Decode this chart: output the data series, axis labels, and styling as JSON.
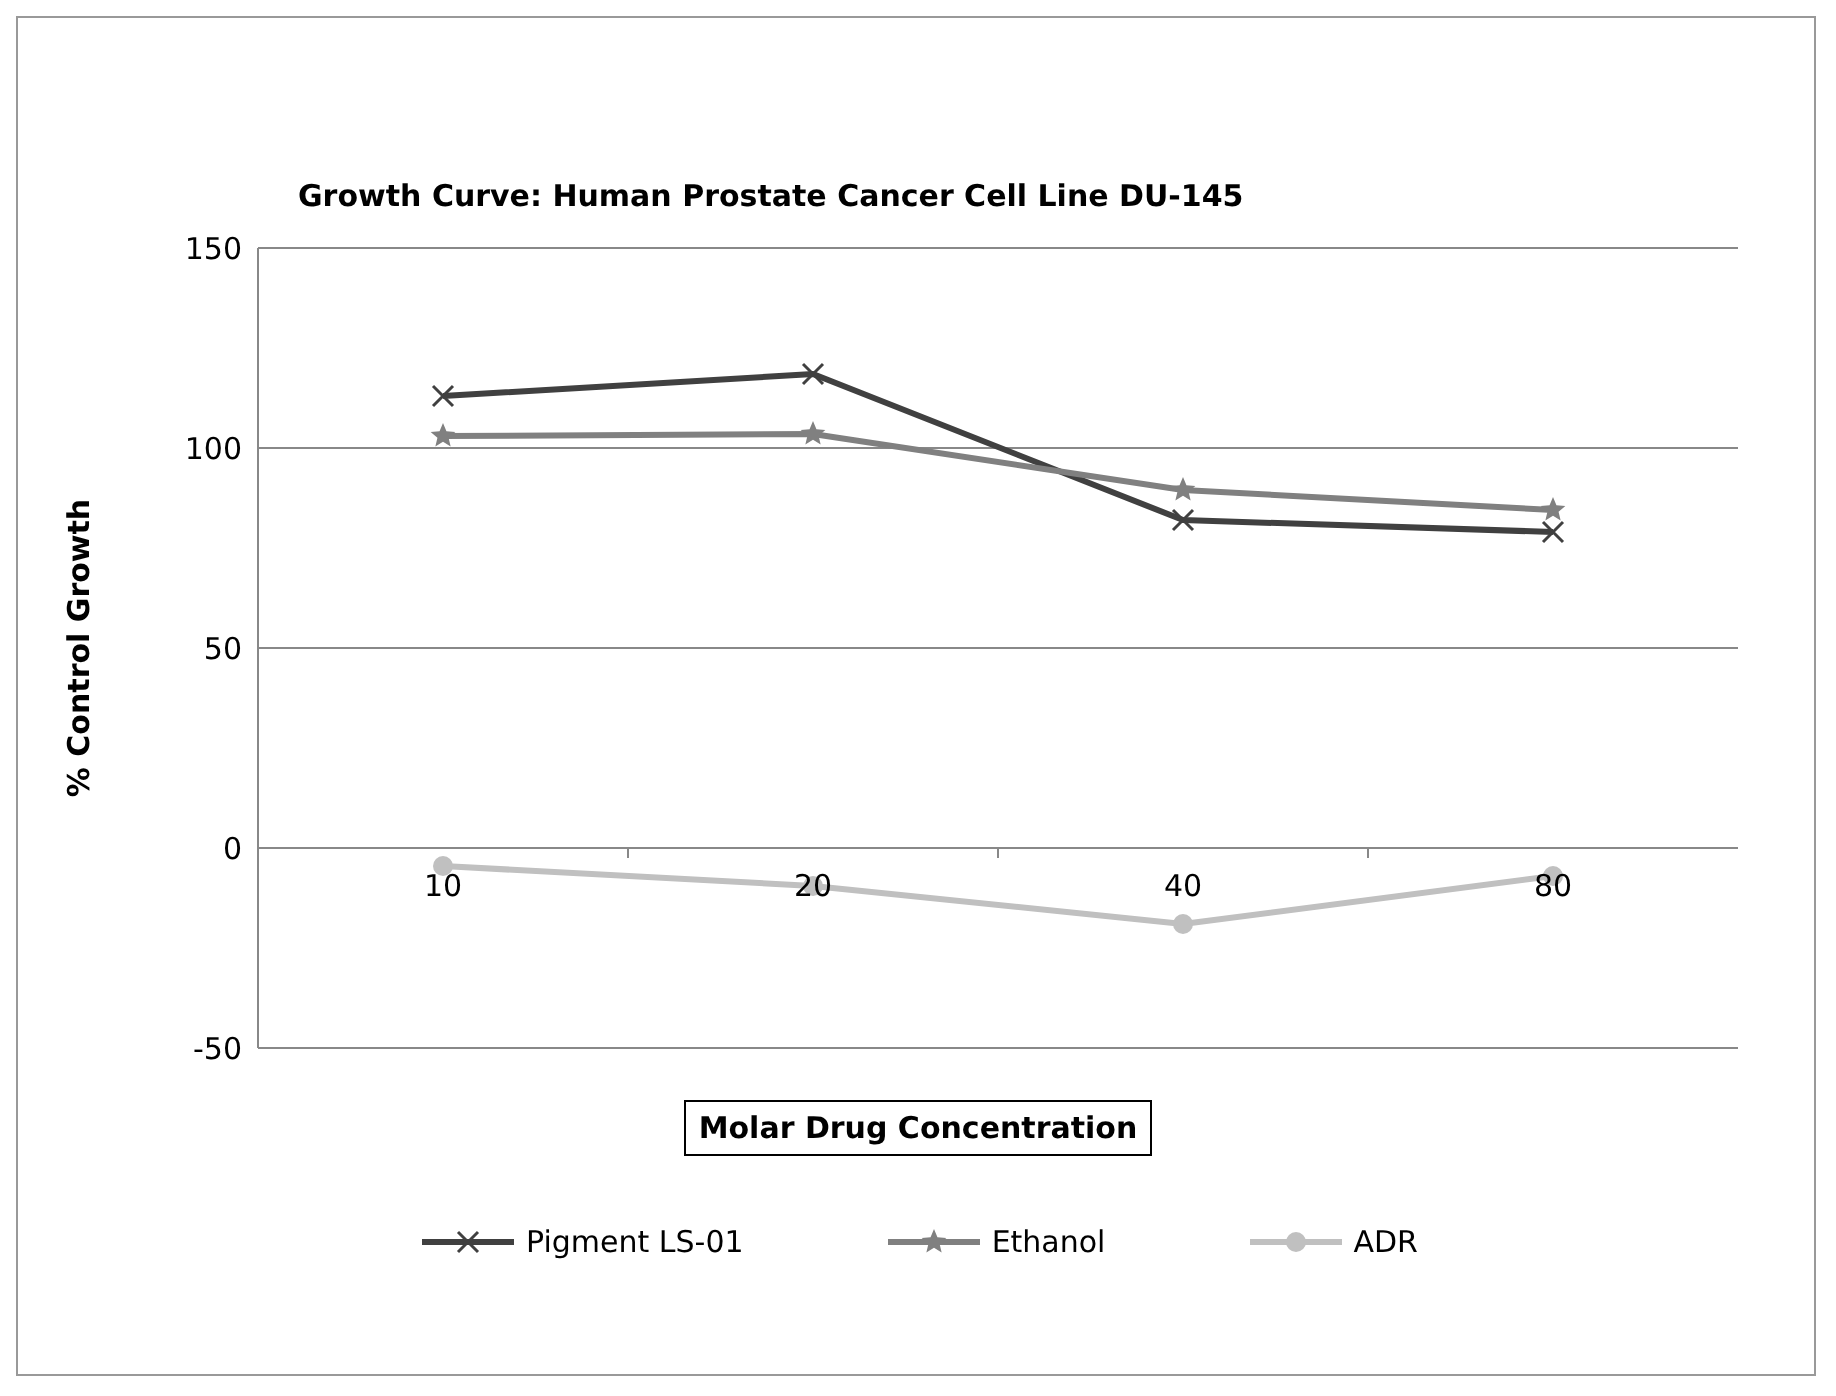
{
  "chart_data": {
    "type": "line",
    "title": "Growth Curve: Human  Prostate Cancer Cell Line DU-145",
    "xlabel": "Molar Drug Concentration",
    "ylabel": "% Control Growth",
    "categories": [
      "10",
      "20",
      "40",
      "80"
    ],
    "series": [
      {
        "name": "Pigment LS-01",
        "color": "#404040",
        "marker": "cross",
        "values": [
          113,
          118.5,
          82,
          79
        ]
      },
      {
        "name": "Ethanol",
        "color": "#808080",
        "marker": "star",
        "values": [
          103,
          103.5,
          89.5,
          84.5
        ]
      },
      {
        "name": "ADR",
        "color": "#c0c0c0",
        "marker": "circle",
        "values": [
          -4.5,
          -9.5,
          -19,
          -7
        ]
      }
    ],
    "ylim": [
      -50,
      150
    ],
    "yticks": [
      -50,
      0,
      50,
      100,
      150
    ],
    "grid": "y",
    "legend": "bottom",
    "line_style": "solid"
  }
}
